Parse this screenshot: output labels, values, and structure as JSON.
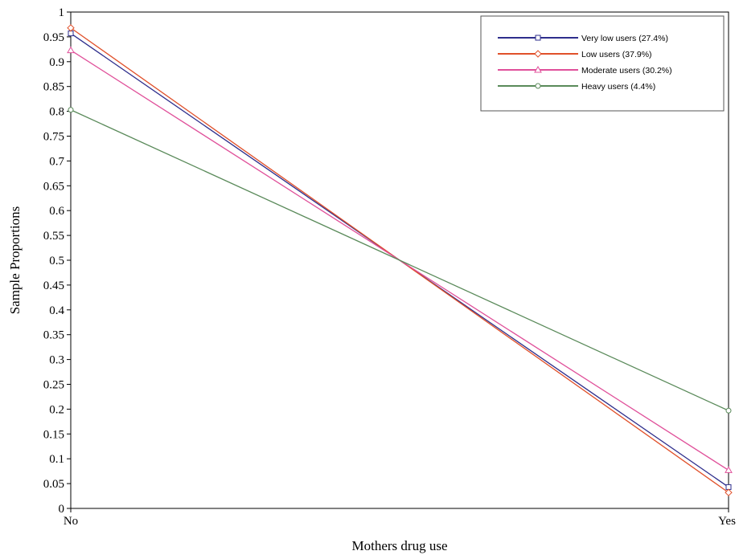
{
  "chart_data": {
    "type": "line",
    "x": [
      "No",
      "Yes"
    ],
    "xlabel": "Mothers drug use",
    "ylabel": "Sample Proportions",
    "ylim": [
      0,
      1
    ],
    "yticks": [
      "0",
      "0.05",
      "0.1",
      "0.15",
      "0.2",
      "0.25",
      "0.3",
      "0.35",
      "0.4",
      "0.45",
      "0.5",
      "0.55",
      "0.6",
      "0.65",
      "0.7",
      "0.75",
      "0.8",
      "0.85",
      "0.9",
      "0.95",
      "1"
    ],
    "grid": false,
    "legend_position": "top-right",
    "series": [
      {
        "name": "Very low users (27.4%)",
        "values": [
          0.957,
          0.043
        ],
        "color": "#2e2e8c",
        "marker": "square"
      },
      {
        "name": "Low users (37.9%)",
        "values": [
          0.968,
          0.032
        ],
        "color": "#e0502a",
        "marker": "diamond"
      },
      {
        "name": "Moderate users (30.2%)",
        "values": [
          0.923,
          0.077
        ],
        "color": "#e0509a",
        "marker": "triangle"
      },
      {
        "name": "Heavy users (4.4%)",
        "values": [
          0.803,
          0.197
        ],
        "color": "#5a8a5a",
        "marker": "circle"
      }
    ]
  }
}
